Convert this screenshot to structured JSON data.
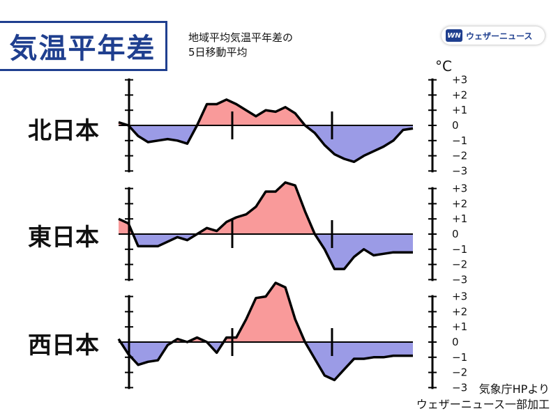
{
  "header": {
    "title": "気温平年差",
    "subtitle_line1": "地域平均気温平年差の",
    "subtitle_line2": "5日移動平均",
    "logo_mark": "WN",
    "logo_text": "ウェザーニュース"
  },
  "unit": "°C",
  "source_line1": "気象庁HPより",
  "source_line2": "ウェザーニュース一部加工",
  "colors": {
    "positive": "#f99a9a",
    "negative": "#9b9be6",
    "line": "#000000",
    "brand": "#1f3f8f"
  },
  "chart_data": [
    {
      "type": "area",
      "title": "北日本",
      "ylim": [
        -3,
        3
      ],
      "yticks": [
        "+3",
        "+2",
        "+1",
        "0",
        "−1",
        "−2",
        "−3"
      ],
      "x": [
        0,
        1,
        2,
        3,
        4,
        5,
        6,
        7,
        8,
        9,
        10,
        11,
        12,
        13,
        14,
        15,
        16,
        17,
        18,
        19,
        20,
        21,
        22,
        23,
        24,
        25,
        26,
        27,
        28,
        29,
        30
      ],
      "values": [
        0.2,
        0.0,
        -0.7,
        -1.1,
        -1.0,
        -0.9,
        -1.0,
        -1.2,
        0.0,
        1.4,
        1.4,
        1.7,
        1.4,
        1.0,
        0.6,
        1.0,
        0.9,
        1.2,
        0.8,
        0.0,
        -0.5,
        -1.3,
        -1.9,
        -2.2,
        -2.4,
        -2.0,
        -1.7,
        -1.4,
        -1.0,
        -0.3,
        -0.2
      ]
    },
    {
      "type": "area",
      "title": "東日本",
      "ylim": [
        -3,
        3
      ],
      "yticks": [
        "+3",
        "+2",
        "+1",
        "0",
        "−1",
        "−2",
        "−3"
      ],
      "x": [
        0,
        1,
        2,
        3,
        4,
        5,
        6,
        7,
        8,
        9,
        10,
        11,
        12,
        13,
        14,
        15,
        16,
        17,
        18,
        19,
        20,
        21,
        22,
        23,
        24,
        25,
        26,
        27,
        28,
        29,
        30
      ],
      "values": [
        1.0,
        0.7,
        -0.8,
        -0.8,
        -0.8,
        -0.5,
        -0.2,
        -0.4,
        0.0,
        0.4,
        0.2,
        0.8,
        1.1,
        1.3,
        1.8,
        2.8,
        2.8,
        3.4,
        3.2,
        1.5,
        0.0,
        -1.0,
        -2.3,
        -2.3,
        -1.5,
        -1.0,
        -1.4,
        -1.3,
        -1.2,
        -1.2,
        -1.2
      ]
    },
    {
      "type": "area",
      "title": "西日本",
      "ylim": [
        -3,
        3
      ],
      "yticks": [
        "+3",
        "+2",
        "+1",
        "0",
        "−1",
        "−2",
        "−3"
      ],
      "x": [
        0,
        1,
        2,
        3,
        4,
        5,
        6,
        7,
        8,
        9,
        10,
        11,
        12,
        13,
        14,
        15,
        16,
        17,
        18,
        19,
        20,
        21,
        22,
        23,
        24,
        25,
        26,
        27,
        28,
        29,
        30
      ],
      "values": [
        0.2,
        -0.8,
        -1.5,
        -1.3,
        -1.2,
        -0.2,
        0.2,
        0.0,
        0.3,
        0.0,
        -0.7,
        0.3,
        0.3,
        1.5,
        2.9,
        3.0,
        3.9,
        3.6,
        1.5,
        0.0,
        -1.1,
        -2.2,
        -2.5,
        -1.8,
        -1.1,
        -1.1,
        -1.0,
        -1.0,
        -0.9,
        -0.9,
        -0.9
      ]
    }
  ]
}
